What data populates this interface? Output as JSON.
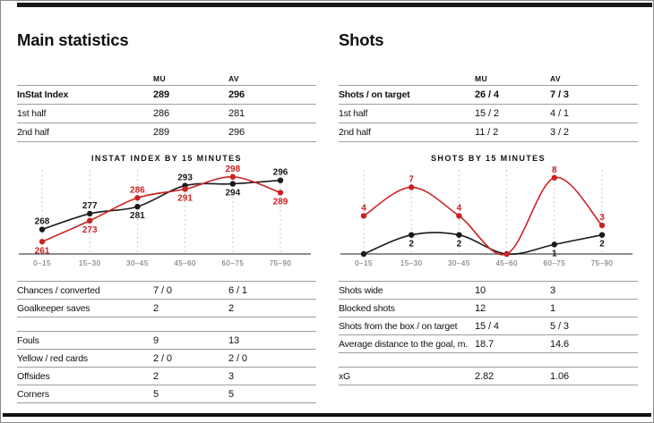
{
  "page": {
    "background": "#ffffff",
    "rule_color": "#9d9d9d",
    "accent_red": "#cc2222",
    "line_black": "#1a1a1a"
  },
  "left": {
    "heading": "Main statistics",
    "top_table": {
      "columns": [
        "MU",
        "AV"
      ],
      "rows": [
        {
          "label": "InStat Index",
          "mu": "289",
          "av": "296",
          "bold": true
        },
        {
          "label": "1st half",
          "mu": "286",
          "av": "281"
        },
        {
          "label": "2nd half",
          "mu": "289",
          "av": "296"
        }
      ]
    },
    "bottom_groups": [
      {
        "rows": [
          {
            "label": "Chances / converted",
            "mu": "7 / 0",
            "av": "6 / 1"
          },
          {
            "label": "Goalkeeper saves",
            "mu": "2",
            "av": "2"
          }
        ]
      },
      {
        "rows": [
          {
            "label": "Fouls",
            "mu": "9",
            "av": "13"
          },
          {
            "label": "Yellow / red cards",
            "mu": "2 / 0",
            "av": "2 / 0"
          },
          {
            "label": "Offsides",
            "mu": "2",
            "av": "3"
          },
          {
            "label": "Corners",
            "mu": "5",
            "av": "5"
          }
        ]
      }
    ]
  },
  "right": {
    "heading": "Shots",
    "top_table": {
      "columns": [
        "MU",
        "AV"
      ],
      "rows": [
        {
          "label": "Shots / on target",
          "mu": "26 / 4",
          "av": "7 / 3",
          "bold": true
        },
        {
          "label": "1st half",
          "mu": "15 / 2",
          "av": "4 / 1"
        },
        {
          "label": "2nd half",
          "mu": "11 / 2",
          "av": "3 / 2"
        }
      ]
    },
    "bottom_groups": [
      {
        "rows": [
          {
            "label": "Shots wide",
            "mu": "10",
            "av": "3"
          },
          {
            "label": "Blocked shots",
            "mu": "12",
            "av": "1"
          },
          {
            "label": "Shots from the box / on target",
            "mu": "15 / 4",
            "av": "5 / 3"
          },
          {
            "label": "Average distance to the goal, m.",
            "mu": "18.7",
            "av": "14.6"
          }
        ]
      },
      {
        "rows": [
          {
            "label": "xG",
            "mu": "2.82",
            "av": "1.06"
          }
        ]
      }
    ]
  },
  "chart_data": [
    {
      "type": "line",
      "title": "INSTAT INDEX BY 15 MINUTES",
      "categories": [
        "0–15",
        "15–30",
        "30–45",
        "45–60",
        "60–75",
        "75–90"
      ],
      "series": [
        {
          "name": "AV",
          "color": "#1a1a1a",
          "values": [
            268,
            277,
            281,
            293,
            294,
            296
          ],
          "label_pos": [
            "above",
            "above",
            "below",
            "above",
            "below",
            "above"
          ]
        },
        {
          "name": "MU",
          "color": "#cc2222",
          "values": [
            261,
            273,
            286,
            291,
            298,
            289
          ],
          "label_pos": [
            "below",
            "below",
            "above",
            "below",
            "above",
            "below"
          ]
        }
      ],
      "ylim": [
        254,
        304
      ],
      "grid": "vertical-dashed",
      "legend": "none"
    },
    {
      "type": "line",
      "title": "SHOTS BY 15 MINUTES",
      "categories": [
        "0–15",
        "15–30",
        "30–45",
        "45–60",
        "60–75",
        "75–90"
      ],
      "series": [
        {
          "name": "AV",
          "color": "#1a1a1a",
          "values": [
            0,
            2,
            2,
            0,
            1,
            2
          ],
          "label_pos": [
            null,
            "below",
            "below",
            null,
            "below",
            "below"
          ]
        },
        {
          "name": "MU",
          "color": "#cc2222",
          "values": [
            4,
            7,
            4,
            0,
            8,
            3
          ],
          "label_pos": [
            "above",
            "above",
            "above",
            null,
            "above",
            "above"
          ]
        }
      ],
      "ylim": [
        0,
        9.2
      ],
      "grid": "vertical-dashed",
      "legend": "none"
    }
  ]
}
